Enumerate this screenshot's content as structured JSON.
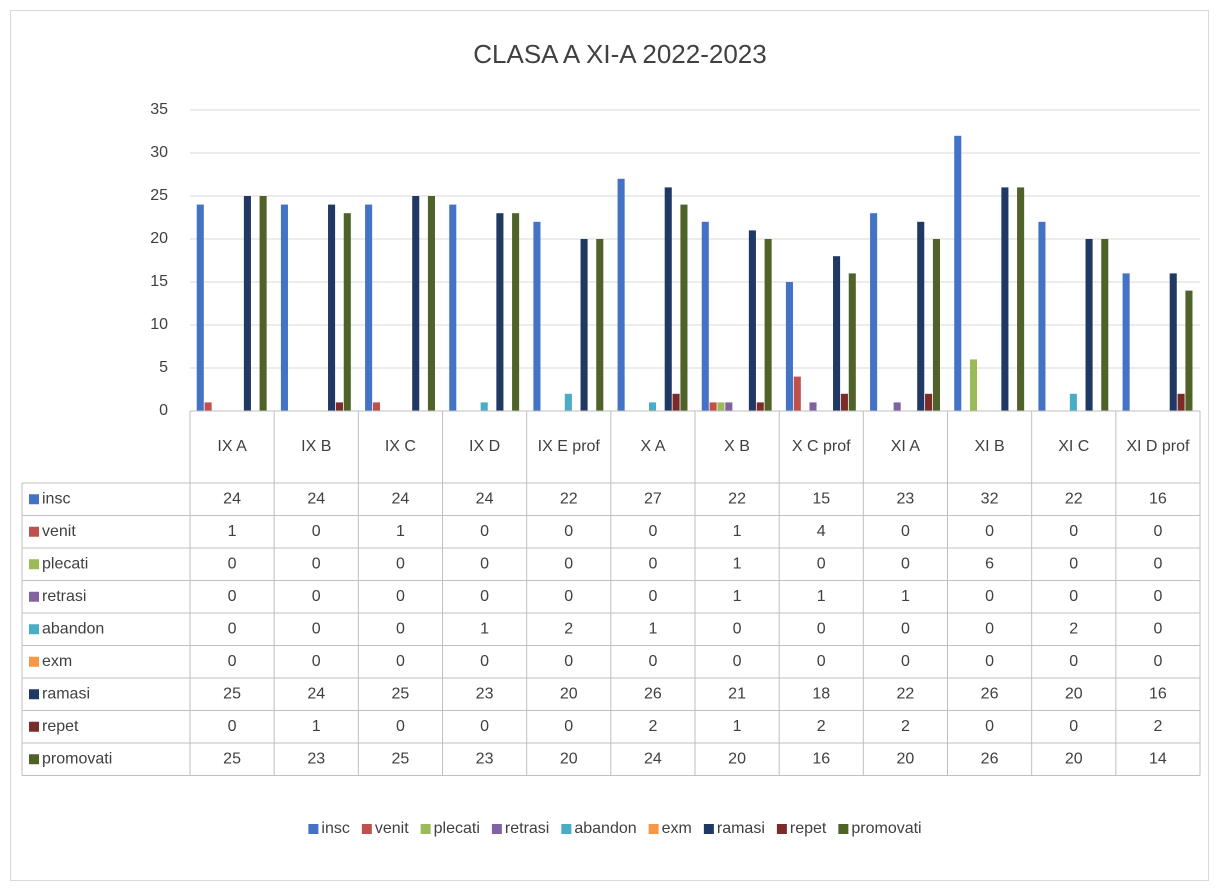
{
  "chart_data": {
    "type": "bar",
    "title": "CLASA A XI-A 2022-2023",
    "categories": [
      "IX A",
      "IX B",
      "IX C",
      "IX D",
      "IX E prof",
      "X A",
      "X B",
      "X C prof",
      "XI A",
      "XI B",
      "XI C",
      "XI D prof"
    ],
    "series": [
      {
        "name": "insc",
        "color": "#4472c4",
        "values": [
          24,
          24,
          24,
          24,
          22,
          27,
          22,
          15,
          23,
          32,
          22,
          16
        ]
      },
      {
        "name": "venit",
        "color": "#c0504d",
        "values": [
          1,
          0,
          1,
          0,
          0,
          0,
          1,
          4,
          0,
          0,
          0,
          0
        ]
      },
      {
        "name": "plecati",
        "color": "#9bbb59",
        "values": [
          0,
          0,
          0,
          0,
          0,
          0,
          1,
          0,
          0,
          6,
          0,
          0
        ]
      },
      {
        "name": "retrasi",
        "color": "#8064a2",
        "values": [
          0,
          0,
          0,
          0,
          0,
          0,
          1,
          1,
          1,
          0,
          0,
          0
        ]
      },
      {
        "name": "abandon",
        "color": "#4bacc6",
        "values": [
          0,
          0,
          0,
          1,
          2,
          1,
          0,
          0,
          0,
          0,
          2,
          0
        ]
      },
      {
        "name": "exm",
        "color": "#f79646",
        "values": [
          0,
          0,
          0,
          0,
          0,
          0,
          0,
          0,
          0,
          0,
          0,
          0
        ]
      },
      {
        "name": "ramasi",
        "color": "#1f3864",
        "values": [
          25,
          24,
          25,
          23,
          20,
          26,
          21,
          18,
          22,
          26,
          20,
          16
        ]
      },
      {
        "name": "repet",
        "color": "#7b2c2a",
        "values": [
          0,
          1,
          0,
          0,
          0,
          2,
          1,
          2,
          2,
          0,
          0,
          2
        ]
      },
      {
        "name": "promovati",
        "color": "#4f6228",
        "values": [
          25,
          23,
          25,
          23,
          20,
          24,
          20,
          16,
          20,
          26,
          20,
          14
        ]
      }
    ],
    "ylim": [
      0,
      35
    ],
    "yticks": [
      0,
      5,
      10,
      15,
      20,
      25,
      30,
      35
    ],
    "grid": true,
    "legend": "bottom",
    "data_table": true
  }
}
